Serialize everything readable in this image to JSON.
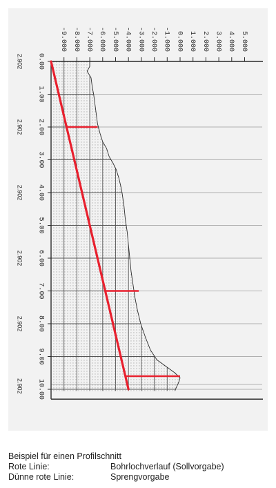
{
  "chart_data": {
    "type": "line",
    "orientation": "rotated-90-clockwise",
    "offset_ticks": [
      "-9.000",
      "-8.000",
      "-7.000",
      "-6.000",
      "-5.000",
      "-4.000",
      "-3.000",
      "-2.000",
      "-1.000",
      "0.000",
      "1.000",
      "2.000",
      "3.000",
      "4.000",
      "5.000"
    ],
    "station_ticks": [
      "0.00",
      "1.00",
      "2.00",
      "3.00",
      "4.00",
      "5.00",
      "6.00",
      "7.00",
      "8.00",
      "9.00",
      "10.00"
    ],
    "offset_range": [
      -10,
      5.5
    ],
    "station_range": [
      0,
      10.3
    ],
    "side_labels": [
      {
        "station": 0.0,
        "text": "2.902"
      },
      {
        "station": 2.0,
        "text": "2.902"
      },
      {
        "station": 4.0,
        "text": "2.902"
      },
      {
        "station": 6.0,
        "text": "2.902"
      },
      {
        "station": 8.0,
        "text": "2.902"
      },
      {
        "station": 9.9,
        "text": "2.902"
      }
    ],
    "profile": {
      "x": [
        0.0,
        0.15,
        0.3,
        0.5,
        0.8,
        1.0,
        1.3,
        1.6,
        1.9,
        2.2,
        2.45,
        2.65,
        2.9,
        3.1,
        3.3,
        3.55,
        3.8,
        4.0,
        4.4,
        4.8,
        5.2,
        5.6,
        6.0,
        6.4,
        6.8,
        7.2,
        7.6,
        8.0,
        8.4,
        8.8,
        9.1,
        9.3,
        9.5,
        9.65,
        9.78,
        9.95,
        10.05
      ],
      "y": [
        -7.0,
        -7.0,
        -7.2,
        -6.9,
        -6.8,
        -6.7,
        -6.6,
        -6.5,
        -6.4,
        -6.2,
        -6.0,
        -5.7,
        -5.5,
        -5.2,
        -4.95,
        -4.75,
        -4.6,
        -4.5,
        -4.35,
        -4.25,
        -4.1,
        -4.0,
        -3.9,
        -3.8,
        -3.65,
        -3.5,
        -3.3,
        -3.05,
        -2.7,
        -2.3,
        -1.8,
        -1.1,
        -0.4,
        0.0,
        -0.1,
        -0.3,
        -0.4
      ]
    },
    "planned_borehole": {
      "x": [
        0.0,
        10.0
      ],
      "y": [
        -10.0,
        -4.0
      ]
    },
    "blast_spec_segments": [
      {
        "station": 2.0,
        "from": -8.8,
        "to": -6.4
      },
      {
        "station": 7.0,
        "from": -5.8,
        "to": -3.2
      },
      {
        "station": 9.6,
        "from": -4.2,
        "to": 0.0
      }
    ],
    "grid": true
  },
  "caption": {
    "title": "Beispiel für einen Profilschnitt",
    "rows": [
      {
        "key": "Rote Linie:",
        "value": "Bohrlochverlauf (Sollvorgabe)"
      },
      {
        "key": "Dünne rote Linie:",
        "value": "Sprengvorgabe"
      }
    ]
  },
  "colors": {
    "red": "#e8202e",
    "ink": "#2b2b2b",
    "grid": "#555555",
    "light_grid": "#9a9a9a"
  }
}
